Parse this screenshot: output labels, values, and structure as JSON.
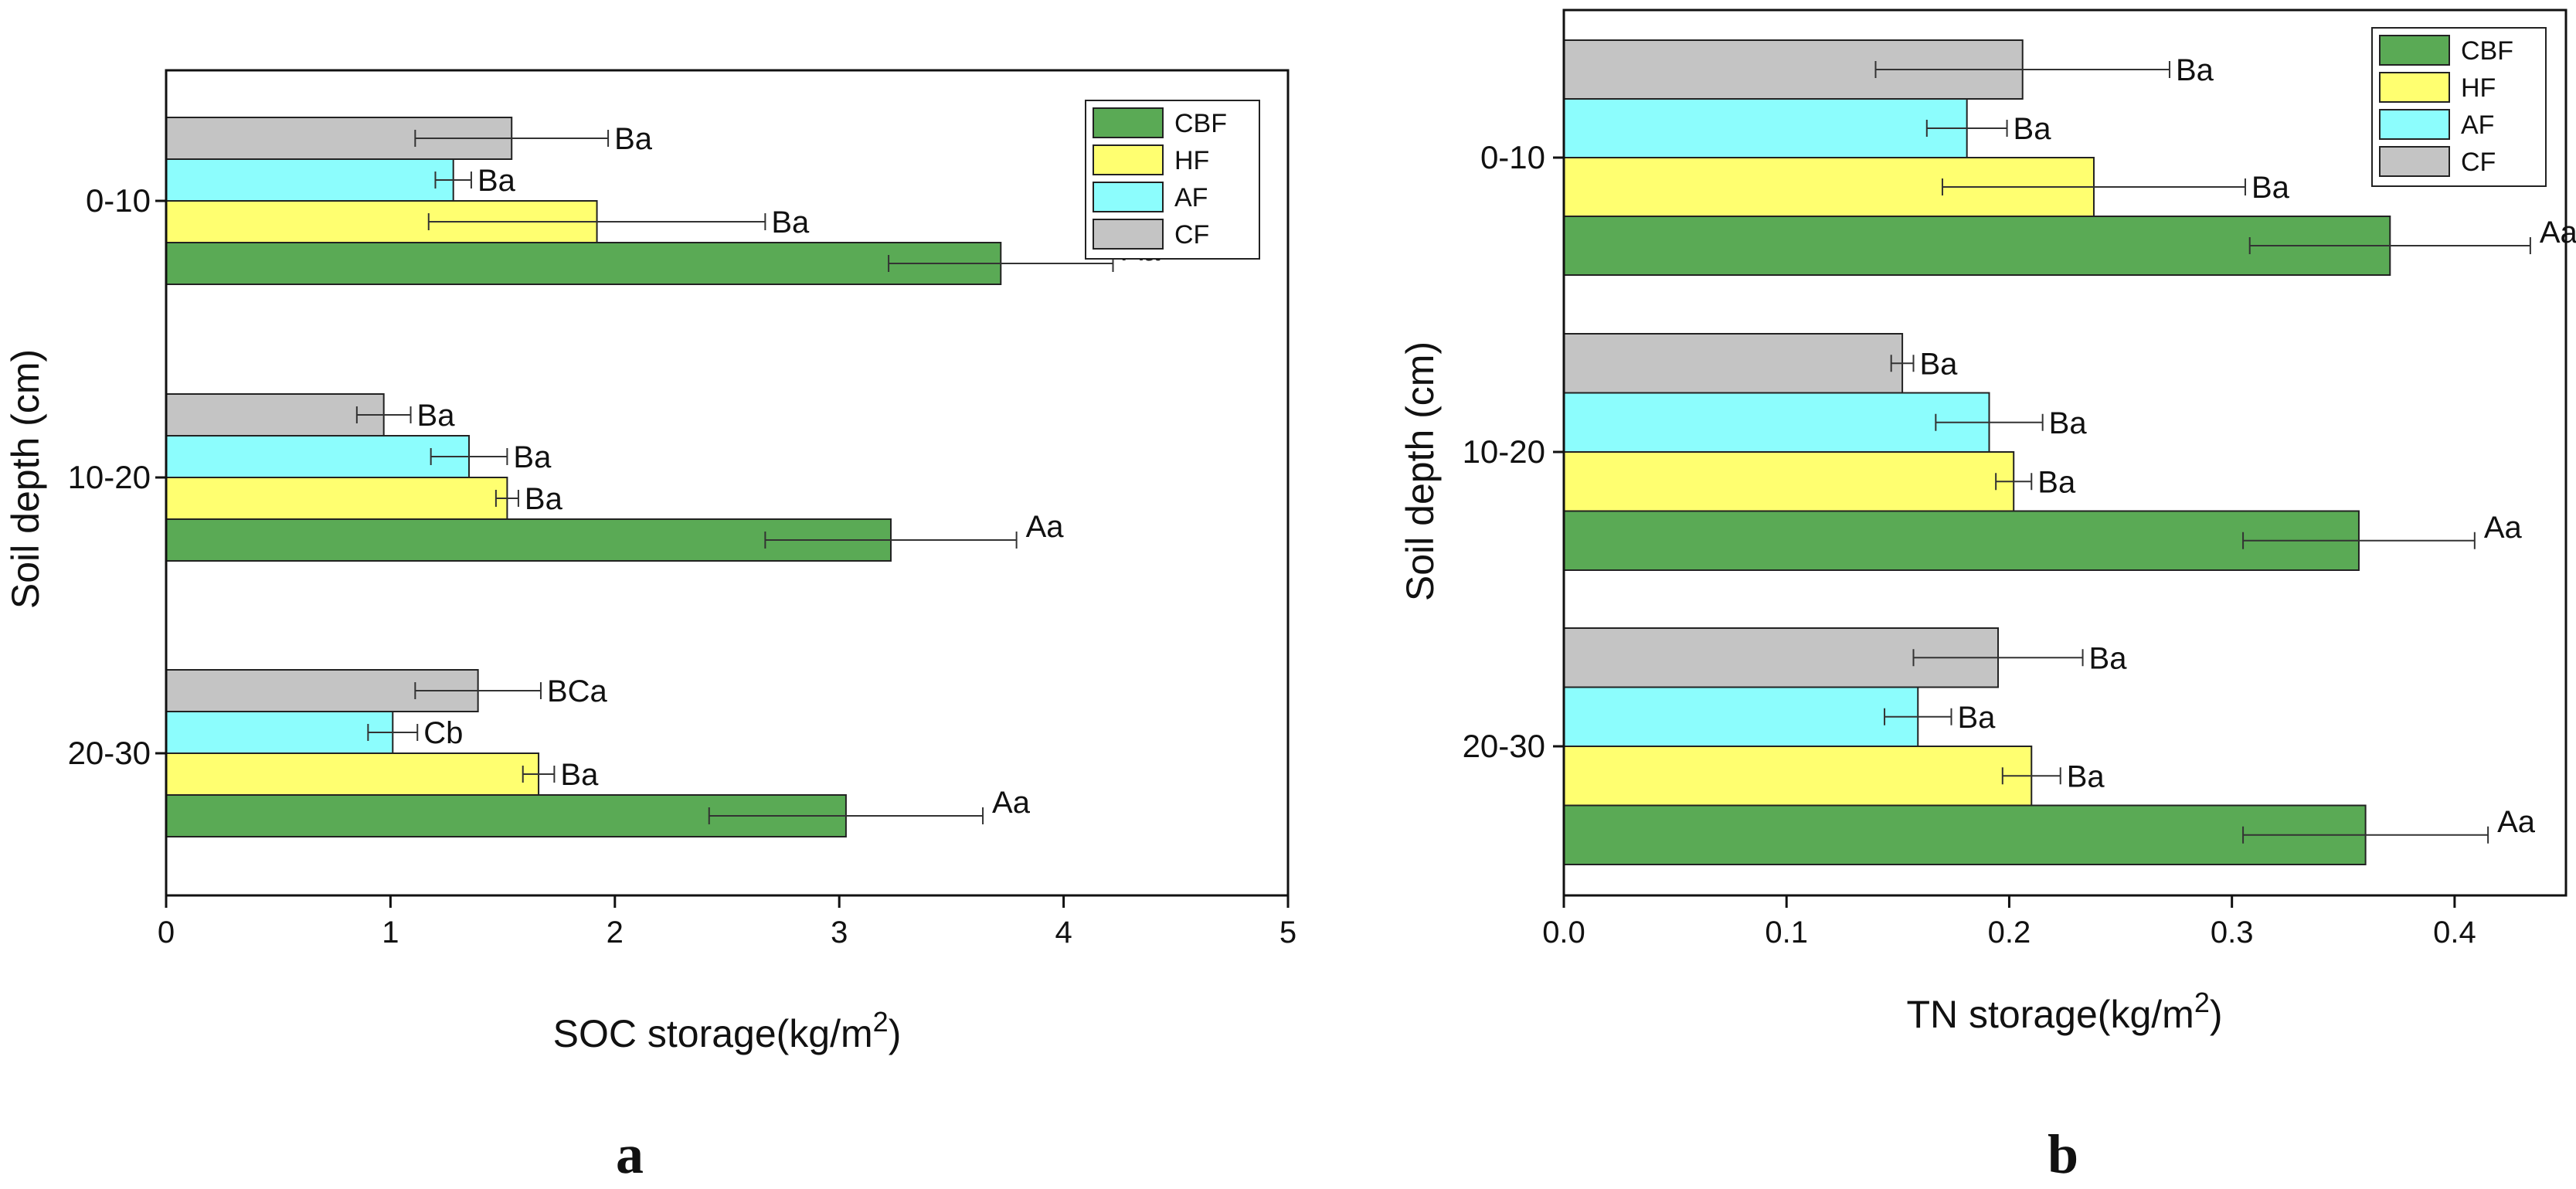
{
  "figure": {
    "panel_letters": [
      "a",
      "b"
    ]
  },
  "colors": {
    "CBF": "#5aaa55",
    "HF": "#ffff70",
    "AF": "#8cfdfd",
    "CF": "#c4c4c4"
  },
  "chart_data": [
    {
      "type": "bar",
      "orientation": "horizontal",
      "panel": "a",
      "xlabel": "SOC storage(kg/m",
      "xlabel_sup": "2",
      "xlabel_close": ")",
      "ylabel": "Soil depth  (cm)",
      "xlim": [
        0,
        5
      ],
      "xticks": [
        0,
        1,
        2,
        3,
        4,
        5
      ],
      "xtick_labels": [
        "0",
        "1",
        "2",
        "3",
        "4",
        "5"
      ],
      "categories": [
        "0-10",
        "10-20",
        "20-30"
      ],
      "legend_position": "top-right",
      "legend": [
        "CBF",
        "HF",
        "AF",
        "CF"
      ],
      "series": [
        {
          "name": "CF",
          "values": [
            1.54,
            0.97,
            1.39
          ],
          "errors": [
            0.43,
            0.12,
            0.28
          ],
          "labels": [
            "Ba",
            "Ba",
            "BCa"
          ]
        },
        {
          "name": "AF",
          "values": [
            1.28,
            1.35,
            1.01
          ],
          "errors": [
            0.08,
            0.17,
            0.11
          ],
          "labels": [
            "Ba",
            "Ba",
            "Cb"
          ]
        },
        {
          "name": "HF",
          "values": [
            1.92,
            1.52,
            1.66
          ],
          "errors": [
            0.75,
            0.05,
            0.07
          ],
          "labels": [
            "Ba",
            "Ba",
            "Ba"
          ]
        },
        {
          "name": "CBF",
          "values": [
            3.72,
            3.23,
            3.03
          ],
          "errors": [
            0.5,
            0.56,
            0.61
          ],
          "labels": [
            "Aa",
            "Aa",
            "Aa"
          ]
        }
      ]
    },
    {
      "type": "bar",
      "orientation": "horizontal",
      "panel": "b",
      "xlabel": "TN storage(kg/m",
      "xlabel_sup": "2",
      "xlabel_close": ")",
      "ylabel": "Soil depth  (cm)",
      "xlim": [
        0,
        0.45
      ],
      "xticks": [
        0,
        0.1,
        0.2,
        0.3,
        0.4
      ],
      "xtick_labels": [
        "0.0",
        "0.1",
        "0.2",
        "0.3",
        "0.4"
      ],
      "categories": [
        "0-10",
        "10-20",
        "20-30"
      ],
      "legend_position": "top-right",
      "legend": [
        "CBF",
        "HF",
        "AF",
        "CF"
      ],
      "series": [
        {
          "name": "CF",
          "values": [
            0.206,
            0.152,
            0.195
          ],
          "errors": [
            0.066,
            0.005,
            0.038
          ],
          "labels": [
            "Ba",
            "Ba",
            "Ba"
          ]
        },
        {
          "name": "AF",
          "values": [
            0.181,
            0.191,
            0.159
          ],
          "errors": [
            0.018,
            0.024,
            0.015
          ],
          "labels": [
            "Ba",
            "Ba",
            "Ba"
          ]
        },
        {
          "name": "HF",
          "values": [
            0.238,
            0.202,
            0.21
          ],
          "errors": [
            0.068,
            0.008,
            0.013
          ],
          "labels": [
            "Ba",
            "Ba",
            "Ba"
          ]
        },
        {
          "name": "CBF",
          "values": [
            0.371,
            0.357,
            0.36
          ],
          "errors": [
            0.063,
            0.052,
            0.055
          ],
          "labels": [
            "Aa",
            "Aa",
            "Aa"
          ]
        }
      ]
    }
  ]
}
